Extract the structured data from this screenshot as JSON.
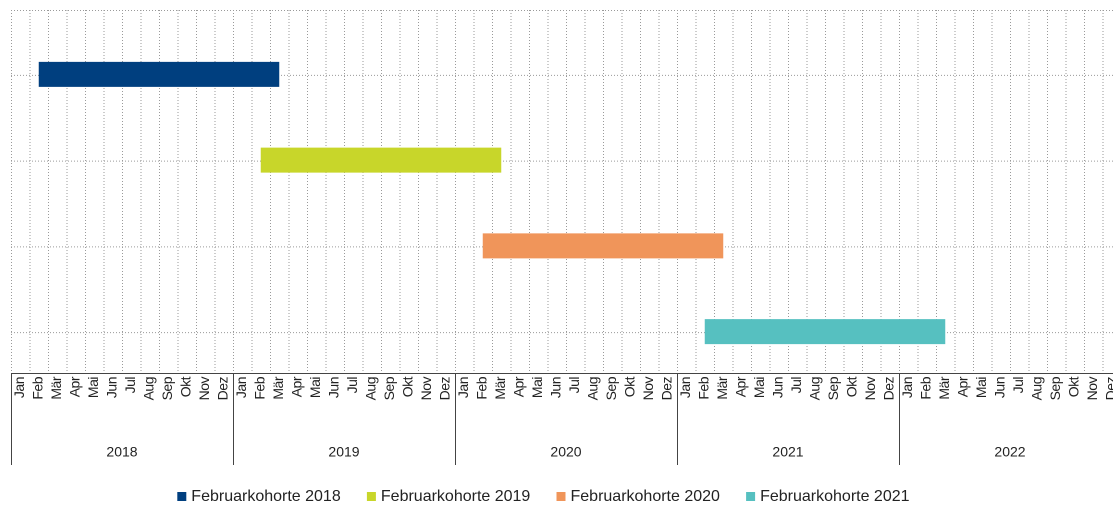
{
  "chart_data": {
    "type": "gantt",
    "years": [
      2018,
      2019,
      2020,
      2021,
      2022
    ],
    "months": [
      "Jan",
      "Feb",
      "Mär",
      "Apr",
      "Mai",
      "Jun",
      "Jul",
      "Aug",
      "Sep",
      "Okt",
      "Nov",
      "Dez"
    ],
    "series": [
      {
        "name": "Februarkohorte 2018",
        "color": "#003f7f",
        "start": "2018-02",
        "end": "2019-02"
      },
      {
        "name": "Februarkohorte 2019",
        "color": "#c8d62a",
        "start": "2019-02",
        "end": "2020-02"
      },
      {
        "name": "Februarkohorte 2020",
        "color": "#f0955a",
        "start": "2020-02",
        "end": "2021-02"
      },
      {
        "name": "Februarkohorte 2021",
        "color": "#56c0c0",
        "start": "2021-02",
        "end": "2022-02"
      }
    ],
    "grid": true,
    "legend": "bottom"
  }
}
